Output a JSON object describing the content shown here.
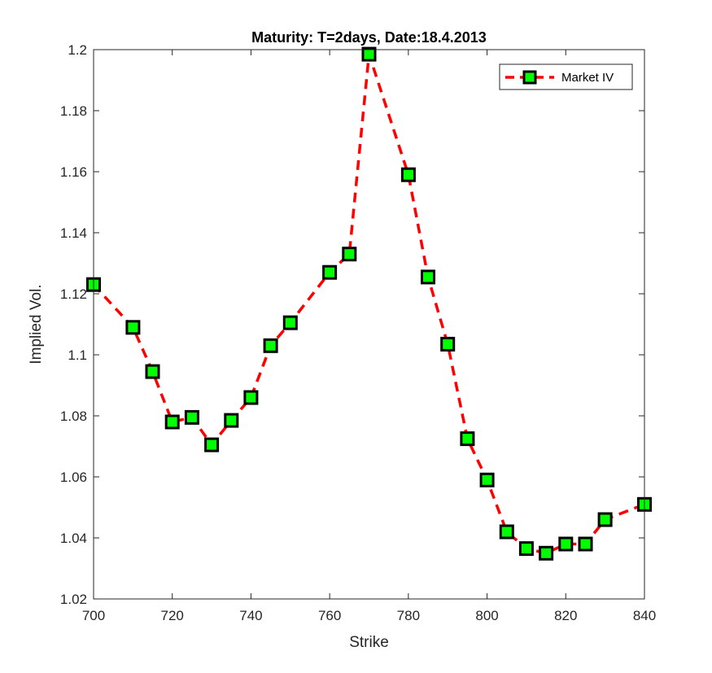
{
  "chart_data": {
    "type": "line",
    "title": "Maturity: T=2days, Date:18.4.2013",
    "xlabel": "Strike",
    "ylabel": "Implied Vol.",
    "xlim": [
      700,
      840
    ],
    "ylim": [
      1.02,
      1.2
    ],
    "xticks": [
      "700",
      "720",
      "740",
      "760",
      "780",
      "800",
      "820",
      "840"
    ],
    "yticks": [
      "1.02",
      "1.04",
      "1.06",
      "1.08",
      "1.1",
      "1.12",
      "1.14",
      "1.16",
      "1.18",
      "1.2"
    ],
    "grid": false,
    "legend_position": "top-right",
    "colors": {
      "line": "#ff0000",
      "marker_fill": "#00ff00",
      "marker_edge": "#000000",
      "axis": "#262626"
    },
    "series": [
      {
        "name": "Market IV",
        "x": [
          700,
          710,
          715,
          720,
          725,
          730,
          735,
          740,
          745,
          750,
          760,
          765,
          770,
          780,
          785,
          790,
          795,
          800,
          805,
          810,
          815,
          820,
          825,
          830,
          840
        ],
        "y": [
          1.123,
          1.109,
          1.0945,
          1.078,
          1.0795,
          1.0705,
          1.0785,
          1.086,
          1.103,
          1.1105,
          1.127,
          1.133,
          1.1985,
          1.159,
          1.1255,
          1.1035,
          1.0725,
          1.059,
          1.042,
          1.0365,
          1.035,
          1.038,
          1.038,
          1.046,
          1.051
        ]
      }
    ]
  }
}
